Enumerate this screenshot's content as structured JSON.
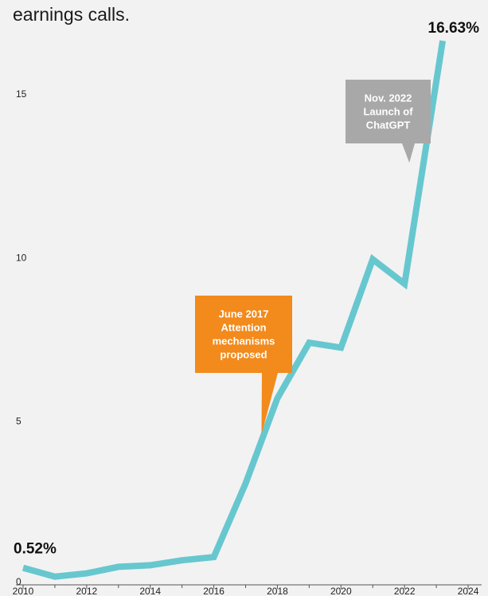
{
  "chart_data": {
    "type": "line",
    "subtitle": "earnings calls.",
    "x": [
      2010,
      2011,
      2012,
      2013,
      2014,
      2015,
      2016,
      2017,
      2018,
      2019,
      2020,
      2021,
      2022,
      2023.2
    ],
    "x_ticks": [
      "2010",
      "2012",
      "2014",
      "2016",
      "2018",
      "2020",
      "2022",
      "2024"
    ],
    "series": [
      {
        "values": [
          0.52,
          0.25,
          0.35,
          0.55,
          0.6,
          0.75,
          0.85,
          3.1,
          5.7,
          7.4,
          7.25,
          9.95,
          9.2,
          16.63
        ]
      }
    ],
    "ylim": [
      0,
      16.9
    ],
    "xlim": [
      2009.9,
      2024.6
    ],
    "y_ticks": [
      "0",
      "5",
      "10",
      "15"
    ],
    "start_label": "0.52%",
    "end_label": "16.63%",
    "line_color": "#67c7cf",
    "grid": false,
    "annotations": [
      {
        "lines": [
          "June 2017",
          "Attention",
          "mechanisms",
          "proposed"
        ],
        "color": "#f28a1c",
        "x": 2017.5,
        "y": 4.6
      },
      {
        "lines": [
          "Nov. 2022",
          "Launch of",
          "ChatGPT"
        ],
        "color": "#a8a8a8",
        "x": 2022.15,
        "y": 12.9
      }
    ]
  }
}
